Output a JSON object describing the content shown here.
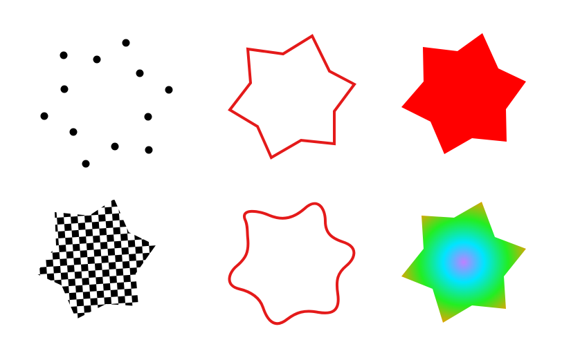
{
  "colors": {
    "background": "#ffffff",
    "dots": "#000000",
    "outline": "#e41a1a",
    "fill": "#ff0000",
    "checker_dark": "#000000",
    "checker_light": "#ffffff",
    "gradient_center": "#c080ff",
    "gradient_mid": "#00e5ff",
    "gradient_outer": "#22ee22",
    "gradient_edge": "#ff9900"
  },
  "panels": [
    {
      "id": "dotted-star",
      "style": "points"
    },
    {
      "id": "outline-star",
      "style": "stroke"
    },
    {
      "id": "filled-star",
      "style": "solid-fill"
    },
    {
      "id": "checker-star",
      "style": "pattern-fill"
    },
    {
      "id": "wavy-outline",
      "style": "smooth-stroke"
    },
    {
      "id": "gradient-star",
      "style": "radial-gradient-fill"
    }
  ]
}
